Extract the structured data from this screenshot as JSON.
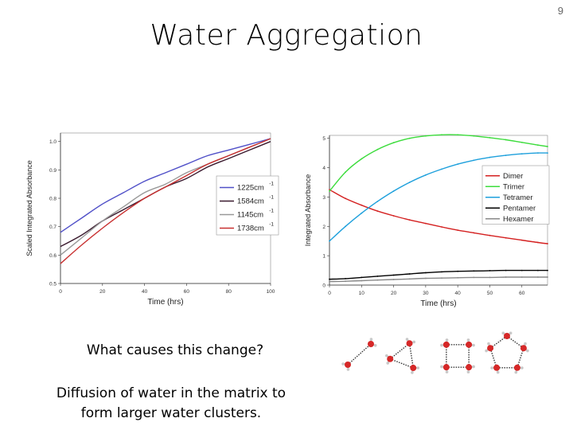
{
  "slide": {
    "title": "Water Aggregation",
    "page_number": "9",
    "question": "What causes this change?",
    "answer": "Diffusion of water in the matrix to form larger water clusters."
  },
  "chart_data": [
    {
      "type": "line",
      "title": "",
      "xlabel": "Time (hrs)",
      "ylabel": "Scaled Integrated Absorbance",
      "xlim": [
        0,
        100
      ],
      "ylim": [
        0.5,
        1.03
      ],
      "xticks": [
        0,
        20,
        40,
        60,
        80,
        100
      ],
      "yticks": [
        0.5,
        0.6,
        0.7,
        0.8,
        0.9,
        1.0
      ],
      "legend_position": "right",
      "series": [
        {
          "name": "1225cm",
          "sup": "-1",
          "color": "#5050c8",
          "x": [
            0,
            10,
            20,
            30,
            40,
            50,
            60,
            70,
            80,
            90,
            100
          ],
          "y": [
            0.68,
            0.73,
            0.78,
            0.82,
            0.86,
            0.89,
            0.92,
            0.95,
            0.97,
            0.99,
            1.01
          ]
        },
        {
          "name": "1584cm",
          "sup": "-1",
          "color": "#3a1a2e",
          "x": [
            0,
            10,
            20,
            30,
            40,
            50,
            60,
            70,
            80,
            90,
            100
          ],
          "y": [
            0.63,
            0.67,
            0.72,
            0.76,
            0.8,
            0.84,
            0.87,
            0.91,
            0.94,
            0.97,
            1.0
          ]
        },
        {
          "name": "1145cm",
          "sup": "-1",
          "color": "#999999",
          "x": [
            0,
            10,
            20,
            30,
            40,
            50,
            60,
            70,
            80,
            90,
            100
          ],
          "y": [
            0.6,
            0.66,
            0.72,
            0.77,
            0.82,
            0.85,
            0.89,
            0.92,
            0.95,
            0.98,
            1.01
          ]
        },
        {
          "name": "1738cm",
          "sup": "-1",
          "color": "#c83030",
          "x": [
            0,
            10,
            20,
            30,
            40,
            50,
            60,
            70,
            80,
            90,
            100
          ],
          "y": [
            0.57,
            0.635,
            0.695,
            0.75,
            0.8,
            0.84,
            0.88,
            0.92,
            0.95,
            0.98,
            1.01
          ]
        }
      ]
    },
    {
      "type": "line",
      "title": "",
      "xlabel": "Time (hrs)",
      "ylabel": "Integrated Absorbance",
      "xlim": [
        0,
        68
      ],
      "ylim": [
        0,
        5.1
      ],
      "xticks": [
        0,
        10,
        20,
        30,
        40,
        50,
        60
      ],
      "yticks": [
        0,
        1,
        2,
        3,
        4,
        5
      ],
      "legend_position": "right",
      "series": [
        {
          "name": "Dimer",
          "color": "#d42020",
          "x": [
            0,
            5,
            10,
            15,
            20,
            25,
            30,
            35,
            40,
            45,
            50,
            55,
            60,
            65,
            68
          ],
          "y": [
            3.25,
            2.95,
            2.72,
            2.52,
            2.36,
            2.22,
            2.1,
            1.98,
            1.87,
            1.78,
            1.69,
            1.61,
            1.53,
            1.45,
            1.41
          ]
        },
        {
          "name": "Trimer",
          "color": "#3cdc3c",
          "x": [
            0,
            5,
            10,
            15,
            20,
            25,
            30,
            35,
            40,
            45,
            50,
            55,
            60,
            65,
            68
          ],
          "y": [
            3.2,
            3.85,
            4.3,
            4.62,
            4.85,
            5.0,
            5.08,
            5.12,
            5.12,
            5.08,
            5.02,
            4.95,
            4.86,
            4.77,
            4.72
          ]
        },
        {
          "name": "Tetramer",
          "color": "#1ea0dc",
          "x": [
            0,
            5,
            10,
            15,
            20,
            25,
            30,
            35,
            40,
            45,
            50,
            55,
            60,
            65,
            68
          ],
          "y": [
            1.5,
            2.0,
            2.45,
            2.85,
            3.2,
            3.5,
            3.75,
            3.95,
            4.12,
            4.25,
            4.35,
            4.42,
            4.47,
            4.5,
            4.5
          ]
        },
        {
          "name": "Pentamer",
          "color": "#000000",
          "x": [
            0,
            5,
            10,
            15,
            20,
            25,
            30,
            35,
            40,
            45,
            50,
            55,
            60,
            65,
            68
          ],
          "y": [
            0.2,
            0.22,
            0.26,
            0.3,
            0.34,
            0.38,
            0.42,
            0.45,
            0.47,
            0.48,
            0.49,
            0.5,
            0.5,
            0.5,
            0.5
          ]
        },
        {
          "name": "Hexamer",
          "color": "#888888",
          "x": [
            0,
            5,
            10,
            15,
            20,
            25,
            30,
            35,
            40,
            45,
            50,
            55,
            60,
            65,
            68
          ],
          "y": [
            0.12,
            0.13,
            0.15,
            0.17,
            0.19,
            0.21,
            0.23,
            0.24,
            0.25,
            0.26,
            0.26,
            0.27,
            0.27,
            0.27,
            0.27
          ]
        }
      ]
    }
  ],
  "cluster_image": {
    "icon": "water-cluster-structures",
    "atom_colors": {
      "oxygen": "#d62828",
      "hydrogen": "#c8c8c8",
      "bond": "#333333"
    }
  }
}
